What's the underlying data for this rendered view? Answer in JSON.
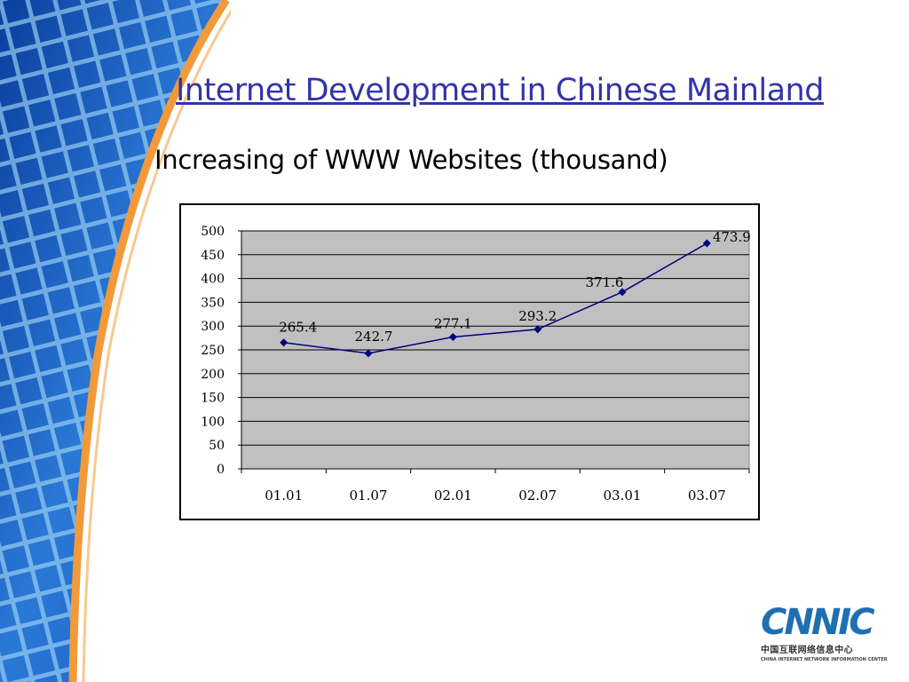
{
  "slide": {
    "title": "Internet Development in Chinese Mainland",
    "subtitle": "Increasing of WWW Websites (thousand)"
  },
  "logo": {
    "name": "CNNIC",
    "chinese": "中国互联网络信息中心",
    "english": "CHINA INTERNET NETWORK INFORMATION CENTER"
  },
  "colors": {
    "title": "#3333aa",
    "plot_area": "#c0c0c0",
    "series_line": "#000080",
    "brand_blue": "#1f6fb3"
  },
  "chart_data": {
    "type": "line",
    "categories": [
      "01.01",
      "01.07",
      "02.01",
      "02.07",
      "03.01",
      "03.07"
    ],
    "series": [
      {
        "values": [
          265.4,
          242.7,
          277.1,
          293.2,
          371.6,
          473.9
        ],
        "labels": [
          "265.4",
          "242.7",
          "277.1",
          "293.2",
          "371.6",
          "473.9"
        ]
      }
    ],
    "yticks": [
      "0",
      "50",
      "100",
      "150",
      "200",
      "250",
      "300",
      "350",
      "400",
      "450",
      "500"
    ],
    "ylim": [
      0,
      500
    ],
    "grid": true,
    "legend": false,
    "marker": "diamond"
  }
}
